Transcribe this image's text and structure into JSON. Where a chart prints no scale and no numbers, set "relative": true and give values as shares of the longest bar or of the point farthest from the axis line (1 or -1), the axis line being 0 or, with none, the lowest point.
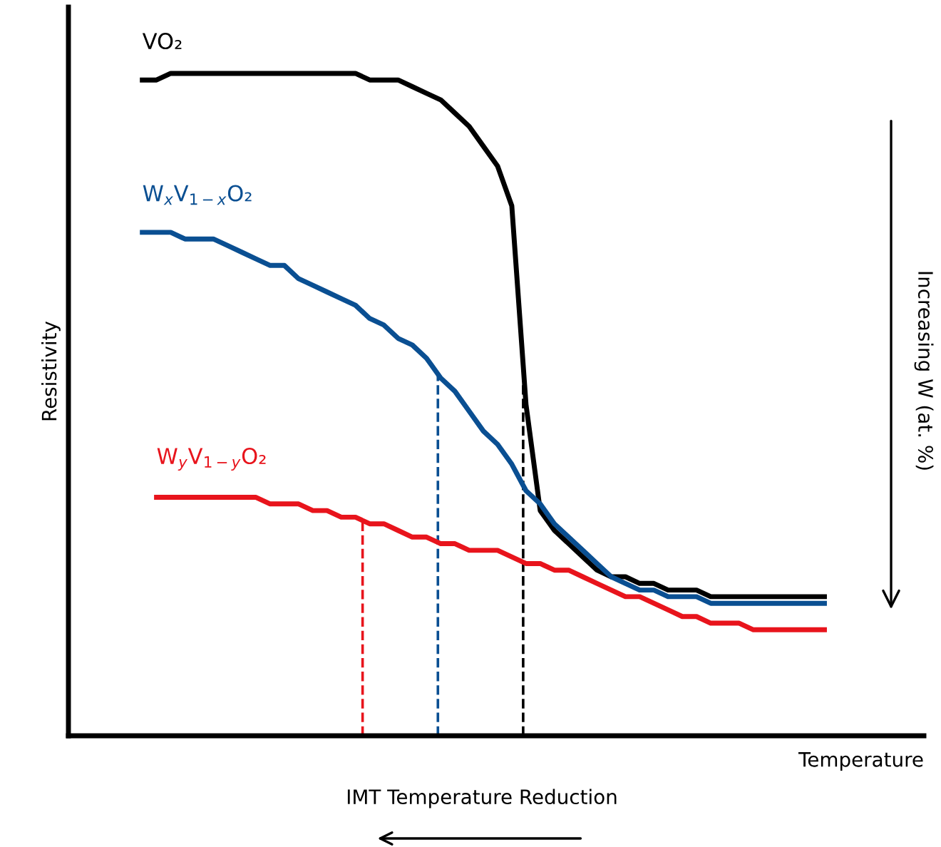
{
  "chart_data": {
    "type": "line",
    "relative": true,
    "xlabel": "Temperature",
    "ylabel": "Resistivity",
    "categories": [
      null,
      null,
      null,
      null,
      null,
      null,
      null,
      null,
      null,
      null,
      null,
      null,
      null,
      null,
      null,
      null,
      null,
      null,
      null,
      null,
      null,
      null,
      null,
      null,
      null,
      null,
      null,
      null,
      null,
      null,
      null,
      null,
      null,
      null,
      null,
      null,
      null,
      null,
      null,
      null,
      null,
      null,
      null,
      null,
      null,
      null,
      null,
      null,
      null
    ],
    "series": [
      {
        "name": "VO₂",
        "color": "#000000",
        "values": [
          0.99,
          0.99,
          1.0,
          1.0,
          1.0,
          1.0,
          1.0,
          1.0,
          1.0,
          1.0,
          1.0,
          1.0,
          1.0,
          1.0,
          1.0,
          1.0,
          0.99,
          0.99,
          0.99,
          0.98,
          0.97,
          0.96,
          0.94,
          0.92,
          0.89,
          0.86,
          0.8,
          0.5,
          0.34,
          0.31,
          0.29,
          0.27,
          0.25,
          0.24,
          0.24,
          0.23,
          0.23,
          0.22,
          0.22,
          0.22,
          0.21,
          0.21,
          0.21,
          0.21,
          0.21,
          0.21,
          0.21,
          0.21,
          0.21
        ]
      },
      {
        "name": "W$_{x}$V$_{1−x}$O₂",
        "color": "#0a4f92",
        "values": [
          0.76,
          0.76,
          0.76,
          0.75,
          0.75,
          0.75,
          0.74,
          0.73,
          0.72,
          0.71,
          0.71,
          0.69,
          0.68,
          0.67,
          0.66,
          0.65,
          0.63,
          0.62,
          0.6,
          0.59,
          0.57,
          0.54,
          0.52,
          0.49,
          0.46,
          0.44,
          0.41,
          0.37,
          0.35,
          0.32,
          0.3,
          0.28,
          0.26,
          0.24,
          0.23,
          0.22,
          0.22,
          0.21,
          0.21,
          0.21,
          0.2,
          0.2,
          0.2,
          0.2,
          0.2,
          0.2,
          0.2,
          0.2,
          0.2
        ]
      },
      {
        "name": "W$_{y}$V$_{1−y}$O₂",
        "color": "#e8141c",
        "values": [
          null,
          0.36,
          0.36,
          0.36,
          0.36,
          0.36,
          0.36,
          0.36,
          0.36,
          0.35,
          0.35,
          0.35,
          0.34,
          0.34,
          0.33,
          0.33,
          0.32,
          0.32,
          0.31,
          0.3,
          0.3,
          0.29,
          0.29,
          0.28,
          0.28,
          0.28,
          0.27,
          0.26,
          0.26,
          0.25,
          0.25,
          0.24,
          0.23,
          0.22,
          0.21,
          0.21,
          0.2,
          0.19,
          0.18,
          0.18,
          0.17,
          0.17,
          0.17,
          0.16,
          0.16,
          0.16,
          0.16,
          0.16,
          0.16
        ]
      }
    ],
    "annotations": [
      "Increasing W (at. %)",
      "IMT Temperature Reduction"
    ],
    "legend": false,
    "marker": "none",
    "line_style": "solid"
  }
}
